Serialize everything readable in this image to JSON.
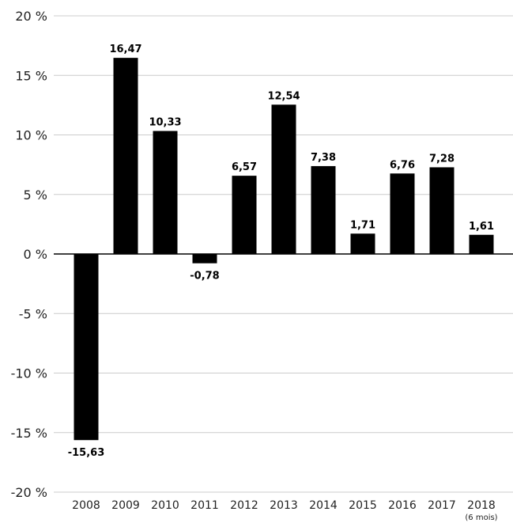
{
  "chart_data": {
    "type": "bar",
    "categories": [
      "2008",
      "2009",
      "2010",
      "2011",
      "2012",
      "2013",
      "2014",
      "2015",
      "2016",
      "2017",
      "2018"
    ],
    "category_notes": [
      "",
      "",
      "",
      "",
      "",
      "",
      "",
      "",
      "",
      "",
      "(6 mois)"
    ],
    "values": [
      -15.63,
      16.47,
      10.33,
      -0.78,
      6.57,
      12.54,
      7.38,
      1.71,
      6.76,
      7.28,
      1.61
    ],
    "value_labels": [
      "-15,63",
      "16,47",
      "10,33",
      "-0,78",
      "6,57",
      "12,54",
      "7,38",
      "1,71",
      "6,76",
      "7,28",
      "1,61"
    ],
    "ylim": [
      -20,
      20
    ],
    "yticks": [
      20,
      15,
      10,
      5,
      0,
      -5,
      -10,
      -15,
      -20
    ],
    "ytick_labels": [
      "20 %",
      "15 %",
      "10 %",
      "5 %",
      "0 %",
      "-5 %",
      "-10 %",
      "-15 %",
      "-20 %"
    ],
    "title": "",
    "xlabel": "",
    "ylabel": "",
    "grid": true,
    "colors": {
      "bar": "#000000",
      "grid": "#cccccc",
      "axis": "#000000"
    }
  }
}
